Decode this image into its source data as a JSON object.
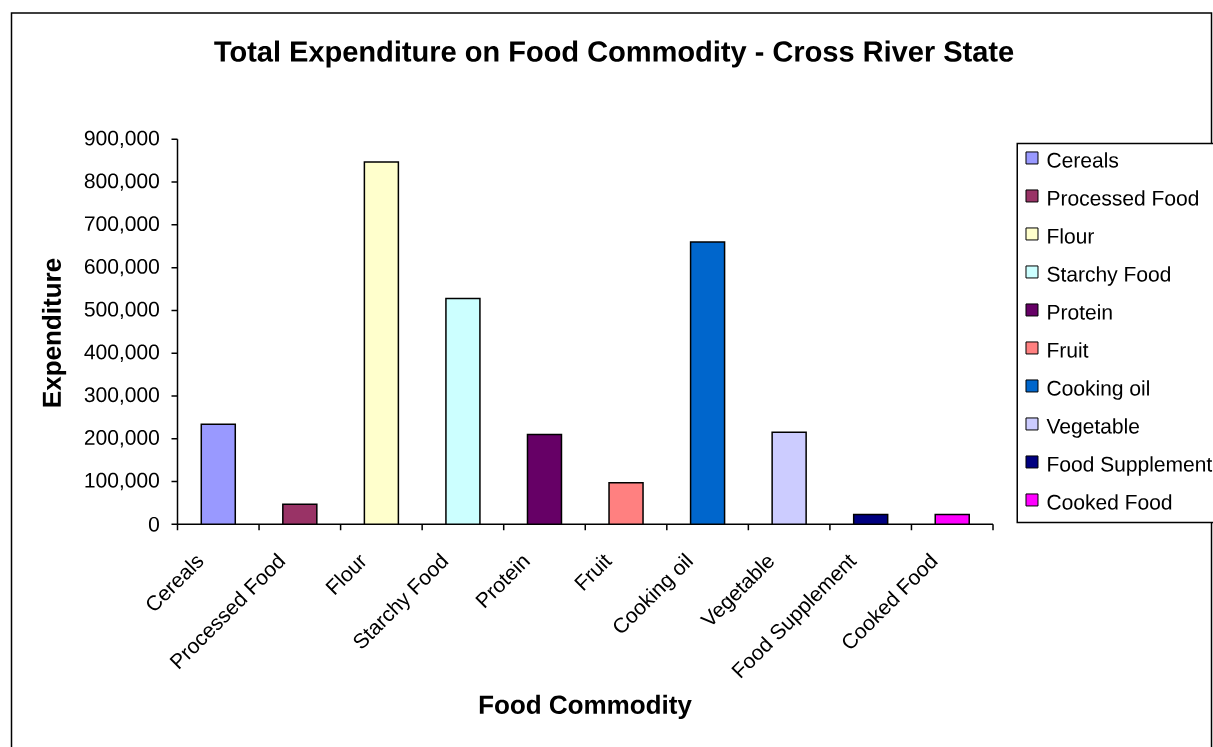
{
  "chart_data": {
    "type": "bar",
    "title": "Total Expenditure on Food Commodity - Cross River State",
    "xlabel": "Food Commodity",
    "ylabel": "Expenditure",
    "categories": [
      "Cereals",
      "Processed Food",
      "Flour",
      "Starchy Food",
      "Protein",
      "Fruit",
      "Cooking oil",
      "Vegetable",
      "Food Supplement",
      "Cooked Food"
    ],
    "stacked": true,
    "series": [
      {
        "name": "Cereals",
        "color": "#9999ff",
        "values": [
          234000,
          null,
          null,
          null,
          null,
          null,
          null,
          null,
          null,
          null
        ]
      },
      {
        "name": "Processed Food",
        "color": "#993366",
        "values": [
          null,
          47000,
          null,
          null,
          null,
          null,
          null,
          null,
          null,
          null
        ]
      },
      {
        "name": "Flour",
        "color": "#ffffcc",
        "values": [
          null,
          null,
          847000,
          null,
          null,
          null,
          null,
          null,
          null,
          null
        ]
      },
      {
        "name": "Starchy Food",
        "color": "#ccffff",
        "values": [
          null,
          null,
          null,
          528000,
          null,
          null,
          null,
          null,
          null,
          null
        ]
      },
      {
        "name": "Protein",
        "color": "#660066",
        "values": [
          null,
          null,
          null,
          null,
          210000,
          null,
          null,
          null,
          null,
          null
        ]
      },
      {
        "name": "Fruit",
        "color": "#ff8080",
        "values": [
          null,
          null,
          null,
          null,
          null,
          97000,
          null,
          null,
          null,
          null
        ]
      },
      {
        "name": "Cooking oil",
        "color": "#0066cc",
        "values": [
          null,
          null,
          null,
          null,
          null,
          null,
          660000,
          null,
          null,
          null
        ]
      },
      {
        "name": "Vegetable",
        "color": "#ccccff",
        "values": [
          null,
          null,
          null,
          null,
          null,
          null,
          null,
          215000,
          null,
          null
        ]
      },
      {
        "name": "Food Supplement",
        "color": "#000080",
        "values": [
          null,
          null,
          null,
          null,
          null,
          null,
          null,
          null,
          23000,
          null
        ]
      },
      {
        "name": "Cooked Food",
        "color": "#ff00ff",
        "values": [
          null,
          null,
          null,
          null,
          null,
          null,
          null,
          null,
          null,
          23000
        ]
      }
    ],
    "ylim": [
      0,
      900000
    ],
    "yticks": [
      0,
      {
        "value": 100000,
        "label": "100,000"
      },
      {
        "value": 200000,
        "label": "200,000"
      },
      {
        "value": 300000,
        "label": "300,000"
      },
      {
        "value": 400000,
        "label": "400,000"
      },
      {
        "value": 500000,
        "label": "500,000"
      },
      {
        "value": 600000,
        "label": "600,000"
      },
      {
        "value": 700000,
        "label": "700,000"
      },
      {
        "value": 800000,
        "label": "800,000"
      },
      {
        "value": 900000,
        "label": "900,000"
      }
    ],
    "legend": "right"
  }
}
